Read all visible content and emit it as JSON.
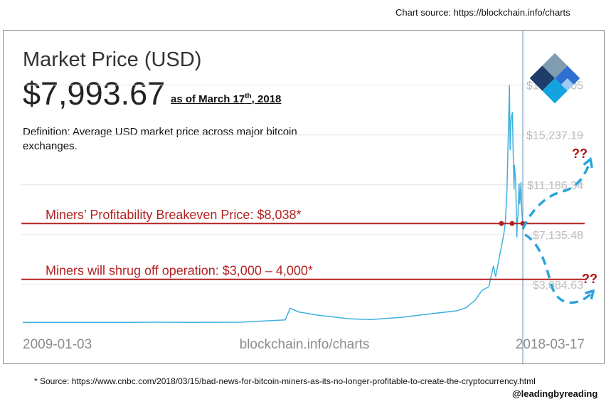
{
  "header": {
    "source_note": "Chart source: https://blockchain.info/charts",
    "title": "Market Price (USD)",
    "price": "$7,993.67",
    "as_of_prefix": "as of March 17",
    "as_of_sup": "th",
    "as_of_suffix": ", 2018",
    "definition": "Definition: Average USD market price across major bitcoin exchanges."
  },
  "footer": {
    "source": "* Source: https://www.cnbc.com/2018/03/15/bad-news-for-bitcoin-miners-as-its-no-longer-profitable-to-create-the-cryptocurrency.html",
    "handle": "@leadingbyreading"
  },
  "colors": {
    "price_line": "#3fb0e0",
    "annotation": "#b22222",
    "projection": "#29a3dc",
    "grid": "#e4e4e4",
    "tick_text": "#bdbdbd",
    "logo_dark": "#1e3d6b",
    "logo_blue": "#2f6fd0",
    "logo_light": "#9ccaf0",
    "logo_cyan": "#12a3e0",
    "logo_grey": "#7f9cb0"
  },
  "icons": {
    "logo": "blockchain-logo-icon"
  },
  "chart_data": {
    "type": "line",
    "title": "Market Price (USD)",
    "x_start_label": "2009-01-03",
    "x_end_label": "2018-03-17",
    "x_center_label": "blockchain.info/charts",
    "y_ticks": [
      "$19,288.05",
      "$15,237.19",
      "$11,186.34",
      "$7,135.48",
      "$3,084.63"
    ],
    "ylim": [
      -966,
      21000
    ],
    "grid": true,
    "series": [
      {
        "values": [
          [
            "2009-01-03",
            0
          ],
          [
            "2011-01-01",
            0.3
          ],
          [
            "2011-06-01",
            15
          ],
          [
            "2012-01-01",
            5
          ],
          [
            "2013-01-01",
            14
          ],
          [
            "2013-11-01",
            200
          ],
          [
            "2013-12-05",
            1150
          ],
          [
            "2014-02-01",
            850
          ],
          [
            "2014-06-01",
            600
          ],
          [
            "2015-01-01",
            300
          ],
          [
            "2015-06-01",
            230
          ],
          [
            "2016-01-01",
            420
          ],
          [
            "2016-06-01",
            650
          ],
          [
            "2017-01-01",
            950
          ],
          [
            "2017-03-01",
            1200
          ],
          [
            "2017-05-01",
            1800
          ],
          [
            "2017-06-15",
            2600
          ],
          [
            "2017-08-01",
            2900
          ],
          [
            "2017-09-01",
            4600
          ],
          [
            "2017-09-15",
            3700
          ],
          [
            "2017-10-15",
            5600
          ],
          [
            "2017-11-10",
            7200
          ],
          [
            "2017-11-20",
            8200
          ],
          [
            "2017-12-01",
            10800
          ],
          [
            "2017-12-10",
            15500
          ],
          [
            "2017-12-17",
            19289
          ],
          [
            "2017-12-22",
            14000
          ],
          [
            "2017-12-28",
            16500
          ],
          [
            "2018-01-06",
            17100
          ],
          [
            "2018-01-10",
            14500
          ],
          [
            "2018-01-17",
            10800
          ],
          [
            "2018-01-20",
            12800
          ],
          [
            "2018-01-28",
            11400
          ],
          [
            "2018-02-05",
            6900
          ],
          [
            "2018-02-08",
            8200
          ],
          [
            "2018-02-12",
            8600
          ],
          [
            "2018-02-20",
            11300
          ],
          [
            "2018-02-25",
            9600
          ],
          [
            "2018-03-05",
            11400
          ],
          [
            "2018-03-10",
            9100
          ],
          [
            "2018-03-17",
            7994
          ]
        ]
      }
    ],
    "annotations": [
      {
        "label": "Miners’ Profitability Breakeven Price: $8,038*",
        "value": 8038
      },
      {
        "label": "Miners will shrug off operation: $3,000 – 4,000*",
        "value": 3500
      }
    ],
    "question_marks": [
      "??",
      "??"
    ]
  }
}
